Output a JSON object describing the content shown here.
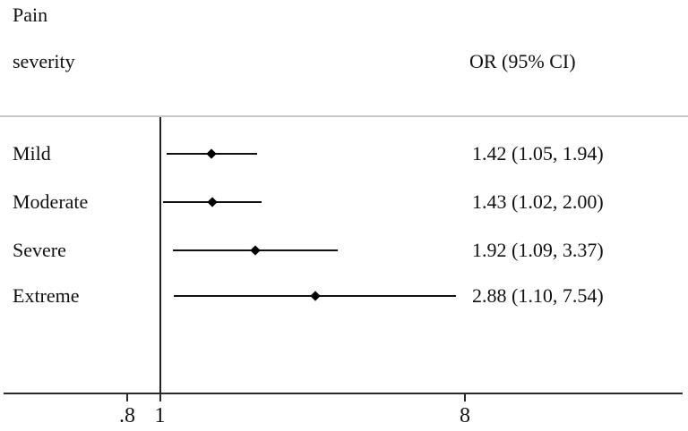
{
  "header": {
    "col1_line1": "Pain",
    "col1_line2": "severity",
    "col2": "OR (95% CI)"
  },
  "chart_data": {
    "type": "scatter",
    "subtype": "forest-plot",
    "x_scale": "log",
    "x_ticks": [
      ".8",
      "1",
      "8"
    ],
    "x_tick_values": [
      0.8,
      1,
      8
    ],
    "reference_line_value": 1,
    "xlabel": "",
    "ylabel": "",
    "legend": null,
    "grid": false,
    "rows": [
      {
        "label": "Mild",
        "or": 1.42,
        "ci_low": 1.05,
        "ci_high": 1.94,
        "display": "1.42 (1.05, 1.94)"
      },
      {
        "label": "Moderate",
        "or": 1.43,
        "ci_low": 1.02,
        "ci_high": 2.0,
        "display": "1.43 (1.02, 2.00)"
      },
      {
        "label": "Severe",
        "or": 1.92,
        "ci_low": 1.09,
        "ci_high": 3.37,
        "display": "1.92 (1.09, 3.37)"
      },
      {
        "label": "Extreme",
        "or": 2.88,
        "ci_low": 1.1,
        "ci_high": 7.54,
        "display": "2.88 (1.10, 7.54)"
      }
    ],
    "colors": {
      "text": "#111111",
      "ci_line": "#111111",
      "marker": "#000000",
      "axis": "#2b2b2b",
      "header_rule": "#c8c8c8"
    }
  }
}
